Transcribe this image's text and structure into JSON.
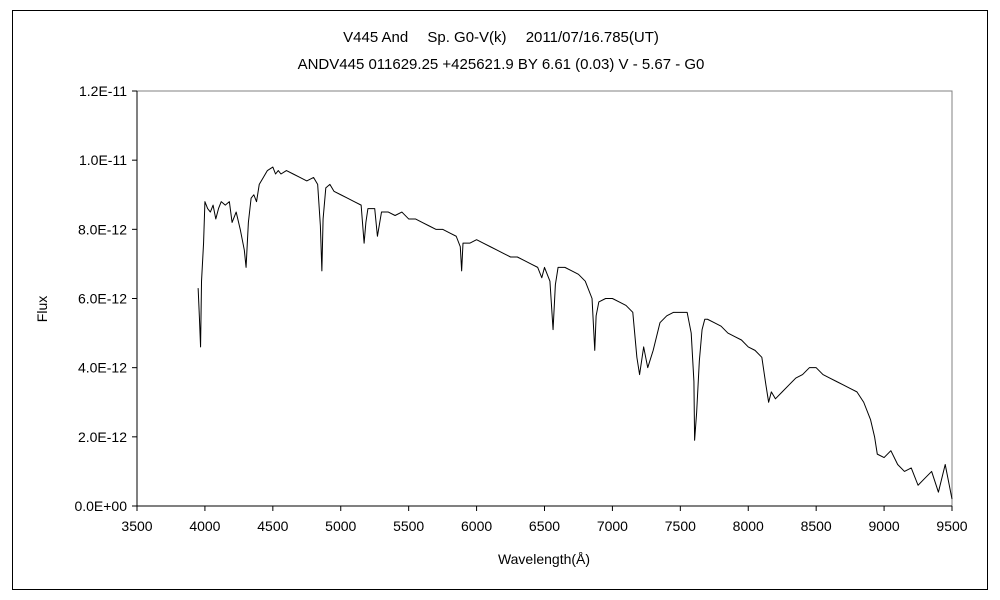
{
  "chart_data": {
    "type": "line",
    "title": "V445 And　 Sp. G0-V(k)　 2011/07/16.785(UT)",
    "subtitle": "ANDV445 011629.25 +425621.9 BY 6.61 (0.03) V - 5.67 - G0",
    "xlabel": "Wavelength(Å)",
    "ylabel": "Flux",
    "xlim": [
      3500,
      9500
    ],
    "ylim": [
      0,
      1.2e-11
    ],
    "xticks": [
      "3500",
      "4000",
      "4500",
      "5000",
      "5500",
      "6000",
      "6500",
      "7000",
      "7500",
      "8000",
      "8500",
      "9000",
      "9500"
    ],
    "yticks": [
      "0.0E+00",
      "2.0E-12",
      "4.0E-12",
      "6.0E-12",
      "8.0E-12",
      "1.0E-11",
      "1.2E-11"
    ],
    "grid": false,
    "legend": "none",
    "line_color": "#000000",
    "series": [
      {
        "x": [
          3950,
          3960,
          3968,
          3975,
          3990,
          4000,
          4020,
          4040,
          4060,
          4080,
          4100,
          4120,
          4150,
          4180,
          4200,
          4230,
          4260,
          4290,
          4303,
          4320,
          4340,
          4360,
          4380,
          4400,
          4430,
          4460,
          4500,
          4520,
          4540,
          4560,
          4600,
          4650,
          4700,
          4750,
          4800,
          4830,
          4850,
          4861,
          4870,
          4890,
          4920,
          4950,
          5000,
          5050,
          5100,
          5150,
          5172,
          5185,
          5200,
          5250,
          5270,
          5300,
          5350,
          5400,
          5450,
          5500,
          5550,
          5600,
          5650,
          5700,
          5750,
          5800,
          5850,
          5880,
          5890,
          5900,
          5950,
          6000,
          6050,
          6100,
          6150,
          6200,
          6250,
          6300,
          6350,
          6400,
          6450,
          6480,
          6500,
          6540,
          6563,
          6580,
          6600,
          6650,
          6700,
          6750,
          6800,
          6850,
          6870,
          6880,
          6900,
          6950,
          7000,
          7050,
          7100,
          7150,
          7180,
          7200,
          7230,
          7260,
          7300,
          7350,
          7400,
          7450,
          7500,
          7550,
          7580,
          7600,
          7605,
          7620,
          7640,
          7660,
          7680,
          7700,
          7750,
          7800,
          7850,
          7900,
          7950,
          8000,
          8050,
          8100,
          8130,
          8150,
          8170,
          8200,
          8250,
          8300,
          8350,
          8400,
          8450,
          8500,
          8550,
          8600,
          8650,
          8700,
          8750,
          8800,
          8850,
          8900,
          8930,
          8950,
          9000,
          9050,
          9100,
          9150,
          9200,
          9250,
          9300,
          9350,
          9400,
          9450,
          9500
        ],
        "y": [
          6.3e-12,
          5.4e-12,
          4.6e-12,
          6.5e-12,
          7.6e-12,
          8.8e-12,
          8.6e-12,
          8.5e-12,
          8.7e-12,
          8.3e-12,
          8.6e-12,
          8.8e-12,
          8.7e-12,
          8.8e-12,
          8.2e-12,
          8.5e-12,
          8e-12,
          7.4e-12,
          6.9e-12,
          8.2e-12,
          8.9e-12,
          9e-12,
          8.8e-12,
          9.3e-12,
          9.5e-12,
          9.7e-12,
          9.8e-12,
          9.6e-12,
          9.7e-12,
          9.6e-12,
          9.7e-12,
          9.6e-12,
          9.5e-12,
          9.4e-12,
          9.5e-12,
          9.3e-12,
          8.1e-12,
          6.8e-12,
          8.3e-12,
          9.2e-12,
          9.3e-12,
          9.1e-12,
          9e-12,
          8.9e-12,
          8.8e-12,
          8.7e-12,
          7.6e-12,
          8.2e-12,
          8.6e-12,
          8.6e-12,
          7.8e-12,
          8.5e-12,
          8.5e-12,
          8.4e-12,
          8.5e-12,
          8.3e-12,
          8.3e-12,
          8.2e-12,
          8.1e-12,
          8e-12,
          8e-12,
          7.9e-12,
          7.8e-12,
          7.5e-12,
          6.8e-12,
          7.6e-12,
          7.6e-12,
          7.7e-12,
          7.6e-12,
          7.5e-12,
          7.4e-12,
          7.3e-12,
          7.2e-12,
          7.2e-12,
          7.1e-12,
          7e-12,
          6.9e-12,
          6.6e-12,
          6.9e-12,
          6.5e-12,
          5.1e-12,
          6.4e-12,
          6.9e-12,
          6.9e-12,
          6.8e-12,
          6.7e-12,
          6.5e-12,
          6e-12,
          4.5e-12,
          5.5e-12,
          5.9e-12,
          6e-12,
          6e-12,
          5.9e-12,
          5.8e-12,
          5.6e-12,
          4.3e-12,
          3.8e-12,
          4.6e-12,
          4e-12,
          4.5e-12,
          5.3e-12,
          5.5e-12,
          5.6e-12,
          5.6e-12,
          5.6e-12,
          5e-12,
          3.6e-12,
          1.9e-12,
          2.7e-12,
          4.2e-12,
          5.1e-12,
          5.4e-12,
          5.4e-12,
          5.3e-12,
          5.2e-12,
          5e-12,
          4.9e-12,
          4.8e-12,
          4.6e-12,
          4.5e-12,
          4.3e-12,
          3.5e-12,
          3e-12,
          3.3e-12,
          3.1e-12,
          3.3e-12,
          3.5e-12,
          3.7e-12,
          3.8e-12,
          4e-12,
          4e-12,
          3.8e-12,
          3.7e-12,
          3.6e-12,
          3.5e-12,
          3.4e-12,
          3.3e-12,
          3e-12,
          2.5e-12,
          2e-12,
          1.5e-12,
          1.4e-12,
          1.6e-12,
          1.2e-12,
          1e-12,
          1.1e-12,
          6e-13,
          8e-13,
          1e-12,
          4e-13,
          1.2e-12,
          2e-13
        ]
      }
    ]
  }
}
